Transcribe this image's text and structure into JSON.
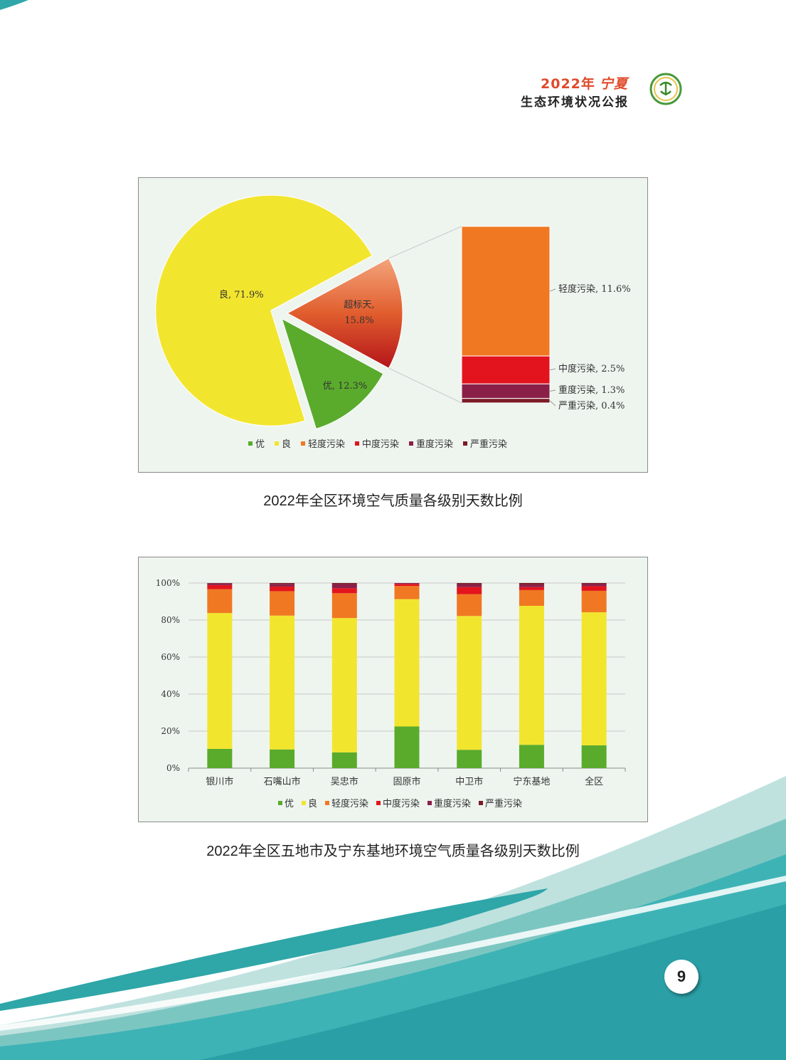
{
  "header": {
    "year": "2022年",
    "region": "宁夏",
    "subtitle": "生态环境状况公报"
  },
  "page_number": "9",
  "colors": {
    "excellent": "#5aab2c",
    "good": "#f2e52e",
    "light": "#f07822",
    "moderate": "#e3141e",
    "heavy": "#8a2048",
    "severe": "#7a1c26",
    "teal": "#2fa6a8"
  },
  "chart_data": [
    {
      "type": "pie",
      "title": "2022年全区环境空气质量各级别天数比例",
      "slices": [
        {
          "name": "良",
          "value": 71.9,
          "label": "良, 71.9%"
        },
        {
          "name": "超标天",
          "value": 15.8,
          "label_line1": "超标天,",
          "label_line2": "15.8%"
        },
        {
          "name": "优",
          "value": 12.3,
          "label": "优, 12.3%"
        }
      ],
      "breakdown": [
        {
          "name": "轻度污染",
          "value": 11.6,
          "label": "轻度污染, 11.6%"
        },
        {
          "name": "中度污染",
          "value": 2.5,
          "label": "中度污染, 2.5%"
        },
        {
          "name": "重度污染",
          "value": 1.3,
          "label": "重度污染, 1.3%"
        },
        {
          "name": "严重污染",
          "value": 0.4,
          "label": "严重污染, 0.4%"
        }
      ],
      "legend": [
        "优",
        "良",
        "轻度污染",
        "中度污染",
        "重度污染",
        "严重污染"
      ]
    },
    {
      "type": "bar",
      "stacked": true,
      "title": "2022年全区五地市及宁东基地环境空气质量各级别天数比例",
      "categories": [
        "银川市",
        "石嘴山市",
        "吴忠市",
        "固原市",
        "中卫市",
        "宁东基地",
        "全区"
      ],
      "series": [
        {
          "name": "优",
          "values": [
            10.4,
            10.1,
            8.5,
            22.5,
            9.9,
            12.6,
            12.3
          ]
        },
        {
          "name": "良",
          "values": [
            73.4,
            72.3,
            72.6,
            68.8,
            72.3,
            75.1,
            71.9
          ]
        },
        {
          "name": "轻度污染",
          "values": [
            12.9,
            13.2,
            13.4,
            7.1,
            11.8,
            8.5,
            11.6
          ]
        },
        {
          "name": "中度污染",
          "values": [
            2.2,
            2.5,
            2.7,
            1.1,
            3.8,
            1.6,
            2.5
          ]
        },
        {
          "name": "重度污染",
          "values": [
            0.8,
            1.4,
            2.2,
            0.5,
            1.6,
            1.4,
            1.3
          ]
        },
        {
          "name": "严重污染",
          "values": [
            0.3,
            0.5,
            0.6,
            0.0,
            0.6,
            0.8,
            0.4
          ]
        }
      ],
      "yticks": [
        "0%",
        "20%",
        "40%",
        "60%",
        "80%",
        "100%"
      ],
      "ylim": [
        0,
        100
      ],
      "grid": true,
      "legend": [
        "优",
        "良",
        "轻度污染",
        "中度污染",
        "重度污染",
        "严重污染"
      ],
      "legend_position": "bottom"
    }
  ]
}
